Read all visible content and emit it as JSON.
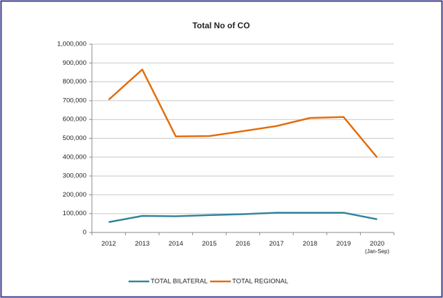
{
  "chart_data": {
    "type": "line",
    "title": "Total No of CO",
    "categories": [
      "2012",
      "2013",
      "2014",
      "2015",
      "2016",
      "2017",
      "2018",
      "2019",
      "2020\n(Jan-Sep)"
    ],
    "series": [
      {
        "name": "TOTAL BILATERAL",
        "color": "#31859c",
        "values": [
          55000,
          88000,
          86000,
          92000,
          97000,
          105000,
          105000,
          105000,
          70000
        ]
      },
      {
        "name": "TOTAL REGIONAL",
        "color": "#e46c0a",
        "values": [
          705000,
          865000,
          510000,
          512000,
          538000,
          565000,
          608000,
          613000,
          398000
        ]
      }
    ],
    "ylim": [
      0,
      1000000
    ],
    "yticks": [
      0,
      {
        "value": 100000,
        "label": "100,000"
      },
      {
        "value": 200000,
        "label": "200,000"
      },
      {
        "value": 300000,
        "label": "300,000"
      },
      {
        "value": 400000,
        "label": "400,000"
      },
      {
        "value": 500000,
        "label": "500,000"
      },
      {
        "value": 600000,
        "label": "600,000"
      },
      {
        "value": 700000,
        "label": "700,000"
      },
      {
        "value": 800000,
        "label": "800,000"
      },
      {
        "value": 900000,
        "label": "900,000"
      },
      {
        "value": 1000000,
        "label": "1,000,000"
      }
    ],
    "grid": true,
    "legend": "bottom"
  }
}
